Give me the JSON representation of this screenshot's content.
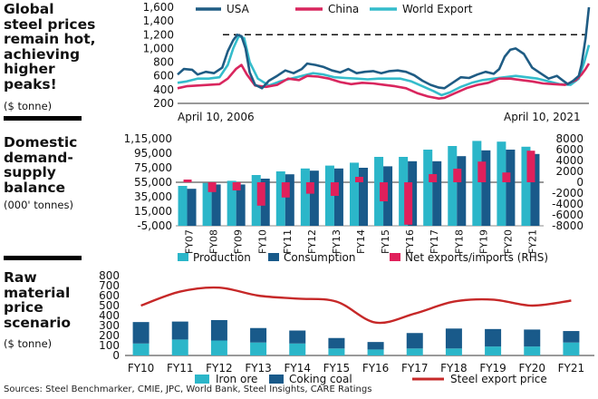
{
  "panels": {
    "p1": {
      "title": [
        "Global",
        "steel prices",
        "remain hot,",
        "achieving",
        "higher",
        "peaks!"
      ],
      "unit": "($ tonne)"
    },
    "p2": {
      "title": [
        "Domestic",
        "demand-",
        "supply",
        "balance"
      ],
      "unit": "(000' tonnes)"
    },
    "p3": {
      "title": [
        "Raw",
        "material",
        "price",
        "scenario"
      ],
      "unit": "($ tonne)"
    }
  },
  "source": "Sources: Steel Benchmarker, CMIE, JPC, World Bank, Steel Insights, CARE Ratings",
  "colors": {
    "usa": "#1f5c84",
    "china": "#d9265e",
    "world": "#34bccb",
    "production": "#2bb6c9",
    "consumption": "#195a8a",
    "net": "#e0205b",
    "ironore": "#2bb6c9",
    "coking": "#195a8a",
    "exportprice": "#c62828"
  },
  "chart_data": [
    {
      "type": "line",
      "x_start_label": "April 10, 2006",
      "x_end_label": "April 10, 2021",
      "x_range": [
        "2006-04-10",
        "2021-04-10"
      ],
      "ylim": [
        200,
        1600
      ],
      "yticks": [
        200,
        400,
        600,
        800,
        1000,
        1200,
        1400,
        1600
      ],
      "y_tick_labels": [
        "200",
        "400",
        "600",
        "800",
        "1,000",
        "1,200",
        "1,400",
        "1,600"
      ],
      "reference_line": 1200,
      "series": [
        {
          "name": "USA",
          "x": [
            2006.27,
            2006.5,
            2006.8,
            2007.0,
            2007.3,
            2007.6,
            2007.9,
            2008.1,
            2008.3,
            2008.45,
            2008.6,
            2008.75,
            2008.9,
            2009.1,
            2009.35,
            2009.6,
            2009.9,
            2010.2,
            2010.5,
            2010.8,
            2011.0,
            2011.3,
            2011.6,
            2011.9,
            2012.2,
            2012.5,
            2012.8,
            2013.1,
            2013.4,
            2013.7,
            2014.0,
            2014.3,
            2014.6,
            2014.9,
            2015.2,
            2015.5,
            2015.8,
            2016.0,
            2016.3,
            2016.6,
            2016.9,
            2017.2,
            2017.5,
            2017.8,
            2018.0,
            2018.2,
            2018.4,
            2018.6,
            2018.9,
            2019.2,
            2019.5,
            2019.8,
            2020.1,
            2020.3,
            2020.5,
            2020.7,
            2020.9,
            2021.0,
            2021.15,
            2021.27
          ],
          "y": [
            620,
            700,
            690,
            620,
            660,
            640,
            720,
            960,
            1120,
            1200,
            1180,
            1000,
            650,
            470,
            420,
            530,
            600,
            680,
            640,
            700,
            780,
            760,
            730,
            680,
            650,
            700,
            640,
            660,
            670,
            640,
            670,
            680,
            660,
            610,
            530,
            470,
            430,
            420,
            500,
            580,
            570,
            620,
            660,
            630,
            700,
            880,
            980,
            1000,
            920,
            720,
            640,
            560,
            600,
            540,
            480,
            530,
            600,
            760,
            1150,
            1600
          ]
        },
        {
          "name": "China",
          "x": [
            2006.27,
            2006.6,
            2007.0,
            2007.4,
            2007.8,
            2008.1,
            2008.4,
            2008.6,
            2008.8,
            2009.1,
            2009.5,
            2009.9,
            2010.3,
            2010.7,
            2011.0,
            2011.4,
            2011.8,
            2012.2,
            2012.6,
            2013.0,
            2013.4,
            2013.8,
            2014.2,
            2014.6,
            2015.0,
            2015.4,
            2015.8,
            2016.0,
            2016.4,
            2016.8,
            2017.2,
            2017.6,
            2018.0,
            2018.4,
            2018.8,
            2019.2,
            2019.6,
            2020.0,
            2020.4,
            2020.8,
            2021.0,
            2021.15,
            2021.27
          ],
          "y": [
            420,
            450,
            460,
            470,
            480,
            560,
            700,
            760,
            620,
            460,
            440,
            470,
            560,
            540,
            600,
            590,
            560,
            510,
            480,
            500,
            490,
            470,
            450,
            420,
            350,
            300,
            270,
            280,
            350,
            420,
            470,
            500,
            560,
            560,
            540,
            520,
            490,
            480,
            470,
            540,
            620,
            700,
            780
          ]
        },
        {
          "name": "World Export",
          "x": [
            2006.27,
            2006.6,
            2007.0,
            2007.4,
            2007.8,
            2008.1,
            2008.3,
            2008.5,
            2008.7,
            2008.9,
            2009.2,
            2009.6,
            2010.0,
            2010.4,
            2010.8,
            2011.2,
            2011.6,
            2012.0,
            2012.4,
            2012.8,
            2013.2,
            2013.6,
            2014.0,
            2014.4,
            2014.8,
            2015.2,
            2015.6,
            2015.9,
            2016.2,
            2016.6,
            2017.0,
            2017.4,
            2017.8,
            2018.2,
            2018.6,
            2019.0,
            2019.4,
            2019.8,
            2020.2,
            2020.6,
            2020.9,
            2021.1,
            2021.27
          ],
          "y": [
            500,
            520,
            560,
            560,
            580,
            760,
            1000,
            1180,
            1150,
            800,
            560,
            460,
            520,
            560,
            600,
            640,
            620,
            580,
            570,
            560,
            550,
            560,
            560,
            560,
            520,
            450,
            380,
            320,
            360,
            440,
            500,
            540,
            560,
            580,
            600,
            580,
            560,
            520,
            480,
            470,
            560,
            800,
            1050
          ]
        }
      ]
    },
    {
      "type": "bar",
      "categories": [
        "FY07",
        "FY08",
        "FY09",
        "FY10",
        "FY11",
        "FY12",
        "FY13",
        "FY14",
        "FY15",
        "FY16",
        "FY17",
        "FY18",
        "FY19",
        "FY20",
        "FY21"
      ],
      "ylim": [
        -5000,
        115000
      ],
      "yticks": [
        -5000,
        15000,
        35000,
        55000,
        75000,
        95000,
        115000
      ],
      "y_tick_labels": [
        "-5,000",
        "15,000",
        "35,000",
        "55,000",
        "75,000",
        "95,000",
        "1,15,000"
      ],
      "ylim_right": [
        -8000,
        8000
      ],
      "yticks_right": [
        -8000,
        -6000,
        -4000,
        -2000,
        0,
        2000,
        4000,
        6000,
        8000
      ],
      "y_tick_labels_right": [
        "-8000",
        "-6000",
        "-4000",
        "-2000",
        "0",
        "2000",
        "4000",
        "6000",
        "8000"
      ],
      "series": [
        {
          "name": "Production",
          "axis": "left",
          "values": [
            50000,
            54000,
            57000,
            65000,
            70000,
            74000,
            78000,
            82000,
            90000,
            90000,
            100000,
            105000,
            112000,
            111000,
            104000
          ]
        },
        {
          "name": "Consumption",
          "axis": "left",
          "values": [
            46000,
            52000,
            52000,
            60000,
            66000,
            71000,
            74000,
            75000,
            77000,
            84000,
            84000,
            91000,
            99000,
            100000,
            94000
          ]
        },
        {
          "name": "Net exports/imports (RHS)",
          "axis": "right",
          "values": [
            500,
            -1800,
            -1500,
            -4300,
            -2800,
            -2100,
            -2500,
            1000,
            -3500,
            -7800,
            1500,
            2500,
            3800,
            1800,
            5800
          ]
        }
      ]
    },
    {
      "type": "bar",
      "categories": [
        "FY10",
        "FY11",
        "FY12",
        "FY13",
        "FY14",
        "FY15",
        "FY16",
        "FY17",
        "FY18",
        "FY19",
        "FY20",
        "FY21"
      ],
      "ylim": [
        0,
        800
      ],
      "yticks": [
        0,
        100,
        200,
        300,
        400,
        500,
        600,
        700,
        800
      ],
      "y_tick_labels": [
        "0",
        "100",
        "200",
        "300",
        "400",
        "500",
        "600",
        "700",
        "800"
      ],
      "series": [
        {
          "name": "Iron ore",
          "values": [
            120,
            160,
            150,
            130,
            120,
            70,
            60,
            70,
            70,
            90,
            90,
            130
          ]
        },
        {
          "name": "Coking coal",
          "values": [
            215,
            180,
            205,
            145,
            130,
            105,
            75,
            155,
            200,
            175,
            170,
            115
          ]
        },
        {
          "name": "Steel export price",
          "type": "line",
          "values": [
            500,
            640,
            680,
            600,
            570,
            540,
            330,
            420,
            540,
            560,
            500,
            550
          ]
        }
      ]
    }
  ]
}
